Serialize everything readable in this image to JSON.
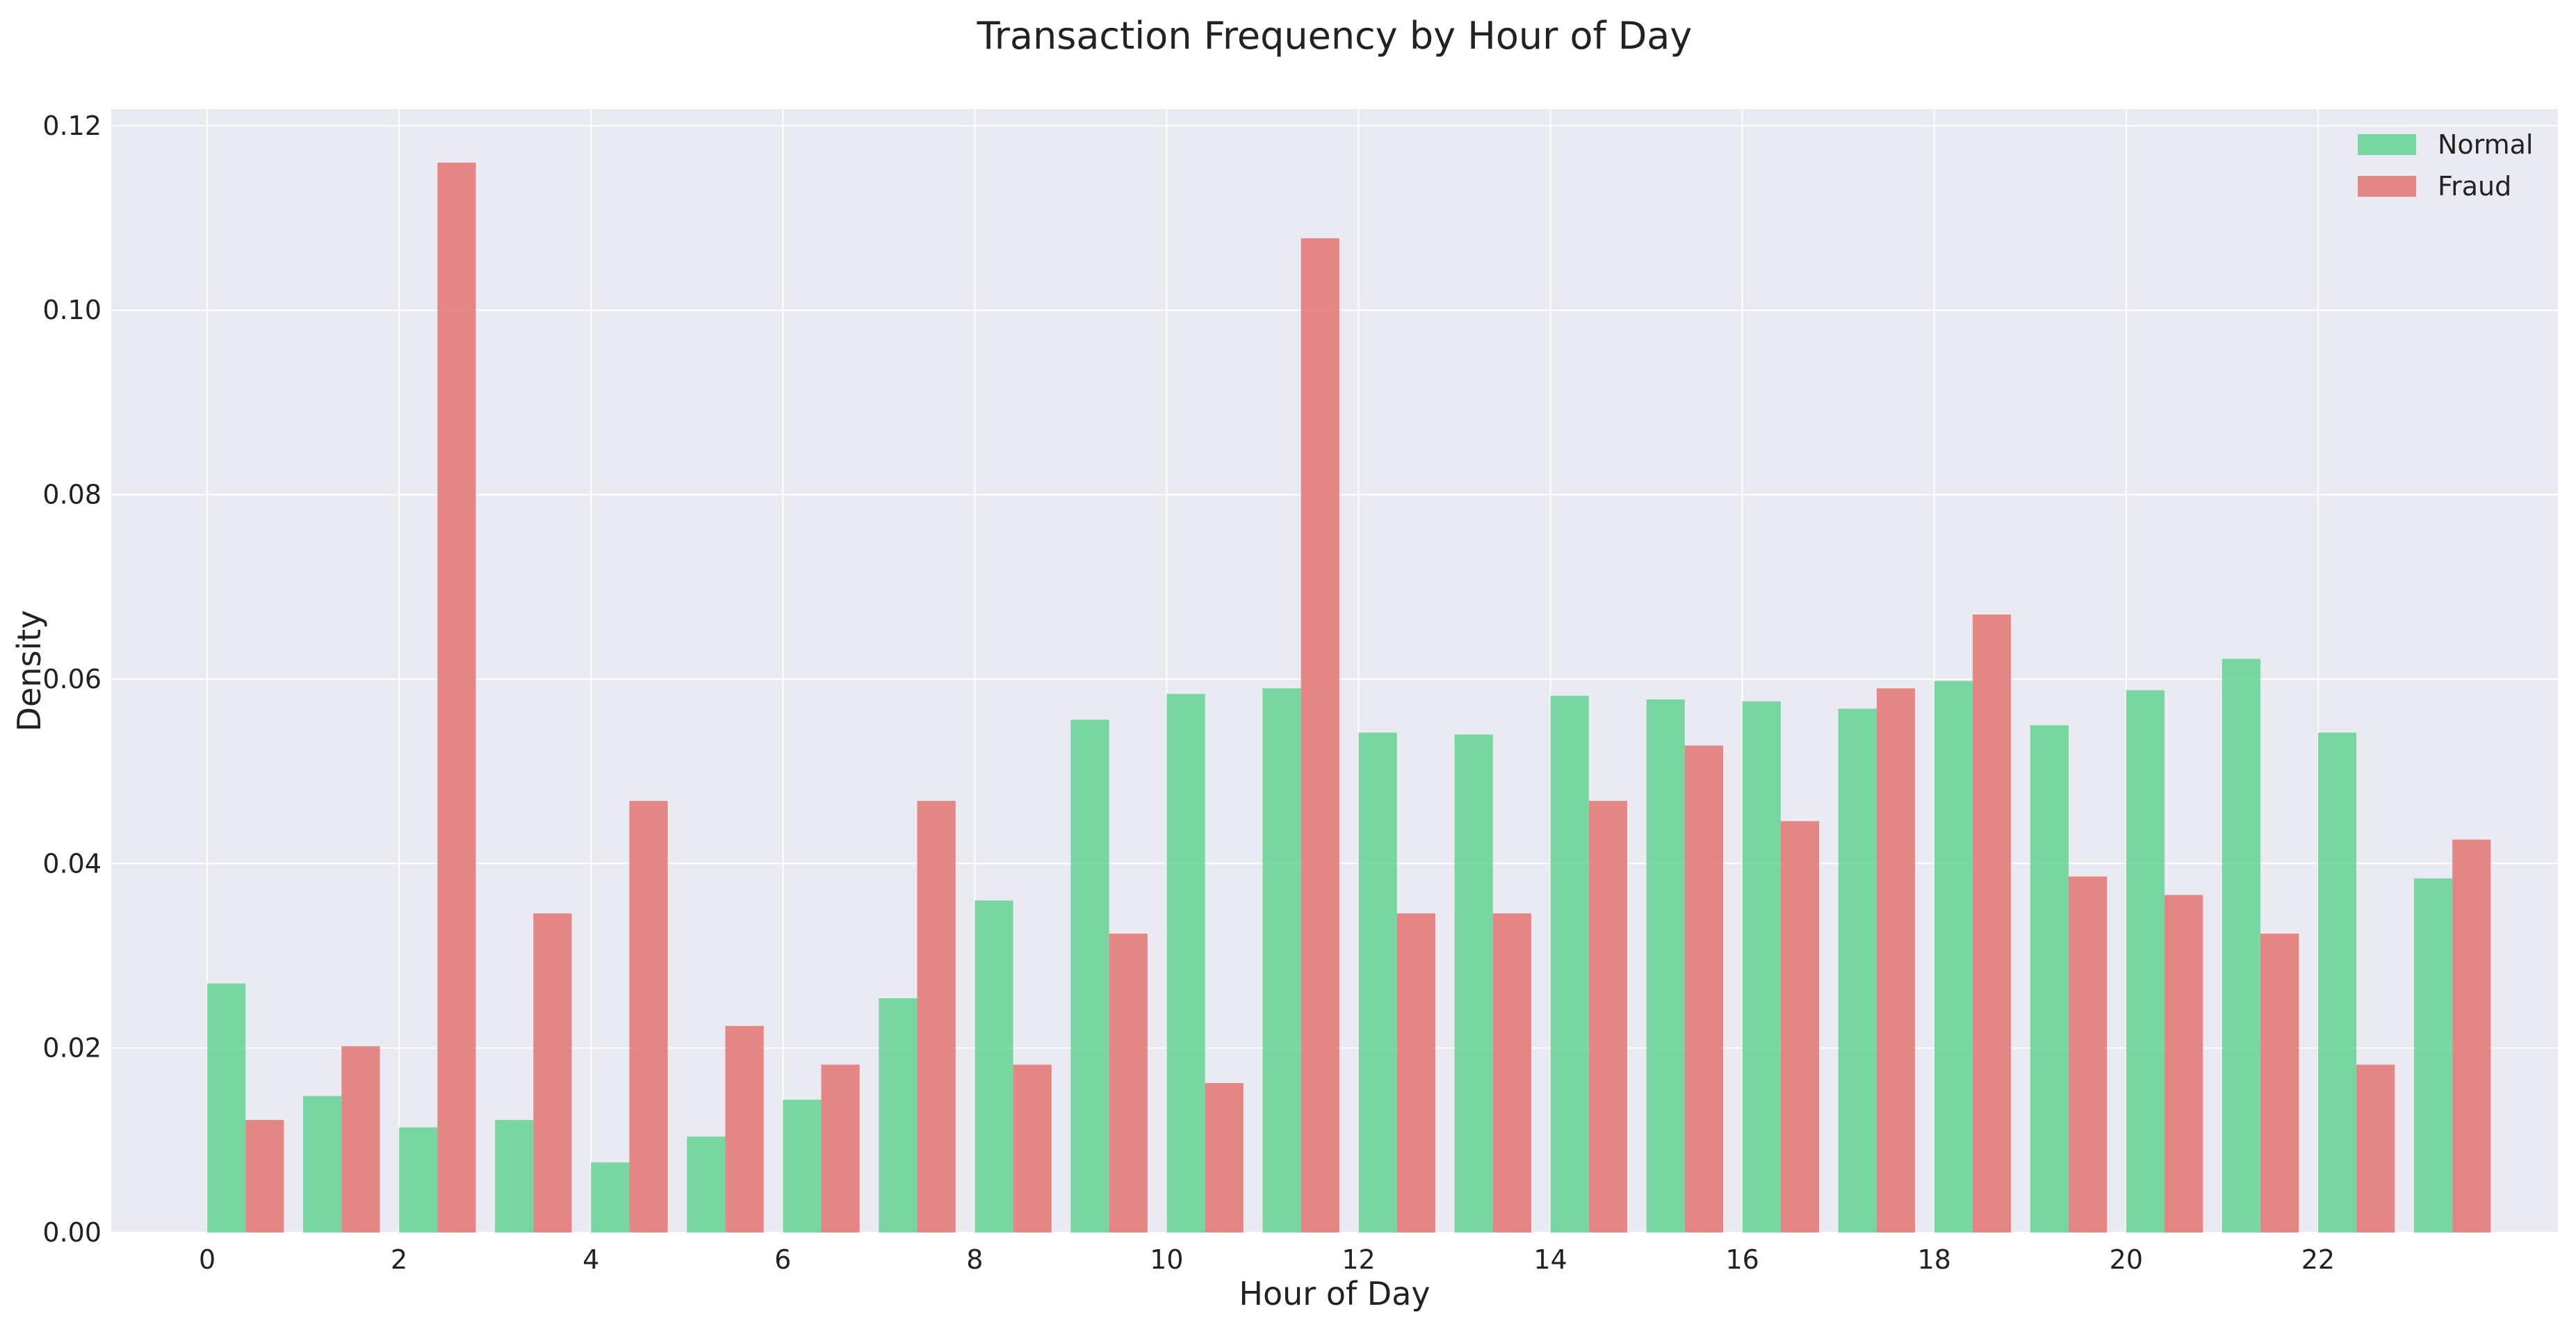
{
  "chart_data": {
    "type": "bar",
    "title": "Transaction Frequency by Hour of Day",
    "xlabel": "Hour of Day",
    "ylabel": "Density",
    "x_tick_labels": [
      "0",
      "2",
      "4",
      "6",
      "8",
      "10",
      "12",
      "14",
      "16",
      "18",
      "20",
      "22"
    ],
    "y_tick_labels": [
      "0.00",
      "0.02",
      "0.04",
      "0.06",
      "0.08",
      "0.10",
      "0.12"
    ],
    "categories": [
      0,
      1,
      2,
      3,
      4,
      5,
      6,
      7,
      8,
      9,
      10,
      11,
      12,
      13,
      14,
      15,
      16,
      17,
      18,
      19,
      20,
      21,
      22,
      23
    ],
    "series": [
      {
        "name": "Normal",
        "color": "#5fd38d",
        "values": [
          0.027,
          0.0148,
          0.0114,
          0.0122,
          0.0076,
          0.0104,
          0.0144,
          0.0254,
          0.036,
          0.0556,
          0.0584,
          0.059,
          0.0542,
          0.054,
          0.0582,
          0.0578,
          0.0576,
          0.0568,
          0.0598,
          0.055,
          0.0588,
          0.0622,
          0.0542,
          0.0384
        ]
      },
      {
        "name": "Fraud",
        "color": "#e3706a",
        "values": [
          0.0122,
          0.0202,
          0.116,
          0.0346,
          0.0468,
          0.0224,
          0.0182,
          0.0468,
          0.0182,
          0.0324,
          0.0162,
          0.1078,
          0.0346,
          0.0346,
          0.0468,
          0.0528,
          0.0446,
          0.059,
          0.067,
          0.0386,
          0.0366,
          0.0324,
          0.0182,
          0.0426
        ]
      }
    ],
    "xlim": [
      -1.0,
      24.5
    ],
    "ylim": [
      0,
      0.1218
    ],
    "grid": true,
    "legend_position": "top-right",
    "colors": {
      "plot_background": "#eaeaf2",
      "grid": "#ffffff"
    }
  }
}
